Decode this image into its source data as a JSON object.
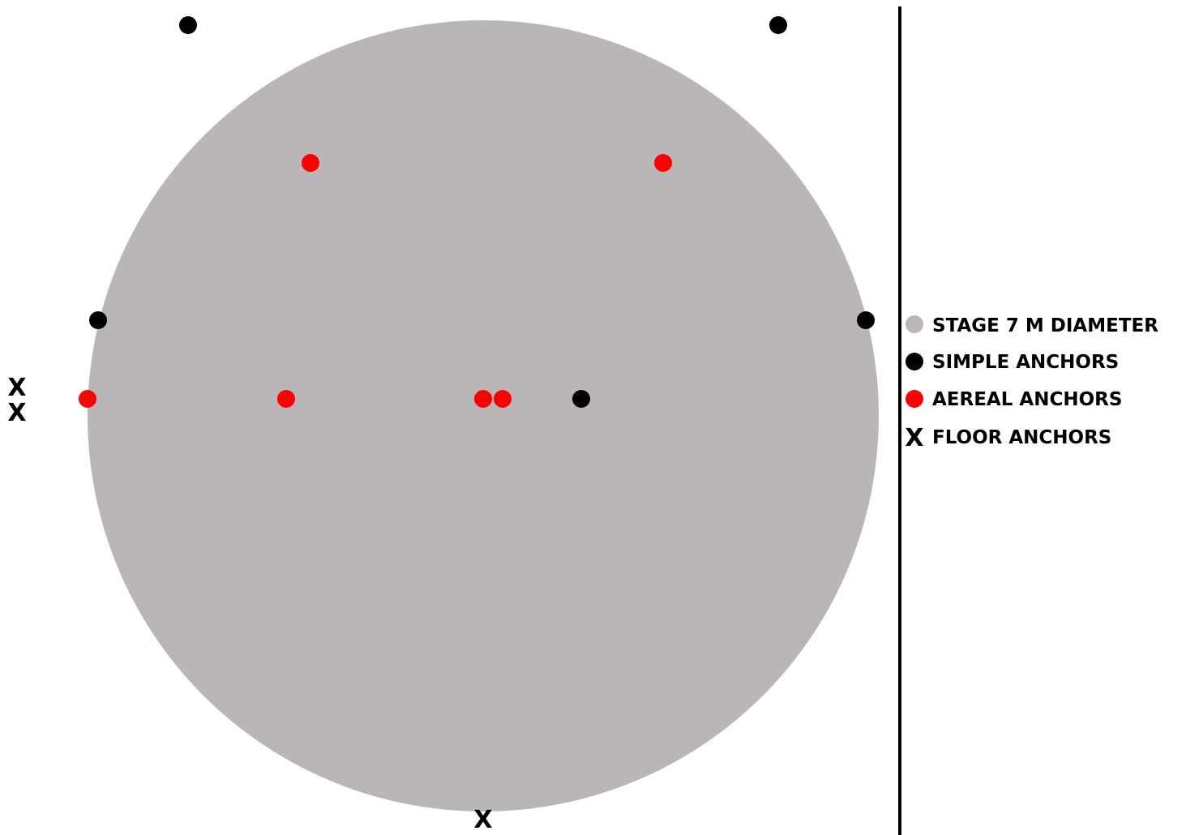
{
  "colors": {
    "stage": "#bab6b7",
    "simple": "#000000",
    "aereal": "#ff0000",
    "floor": "#000000",
    "divider": "#000000"
  },
  "legend": {
    "stage": "STAGE 7 M DIAMETER",
    "simple": "SIMPLE ANCHORS",
    "aereal": "AEREAL ANCHORS",
    "floor": "FLOOR ANCHORS"
  },
  "floor_marker_glyph": "X"
}
